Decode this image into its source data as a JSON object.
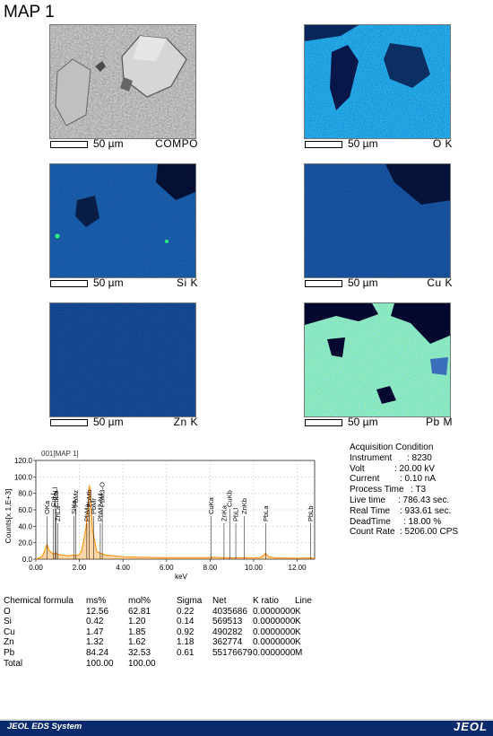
{
  "title": "MAP 1",
  "maps": [
    {
      "scale": "50 µm",
      "element": "COMPO"
    },
    {
      "scale": "50 µm",
      "element": "O K"
    },
    {
      "scale": "50 µm",
      "element": "Si K"
    },
    {
      "scale": "50 µm",
      "element": "Cu K"
    },
    {
      "scale": "50 µm",
      "element": "Zn K"
    },
    {
      "scale": "50 µm",
      "element": "Pb M"
    }
  ],
  "acquisition": {
    "heading": "Acquisition Condition",
    "rows": [
      {
        "key": "Instrument",
        "value": ": 8230"
      },
      {
        "key": "Volt",
        "value": ": 20.00 kV"
      },
      {
        "key": "Current",
        "value": ": 0.10 nA"
      },
      {
        "key": "Process Time",
        "value": ": T3"
      },
      {
        "key": "Live time",
        "value": ": 786.43 sec."
      },
      {
        "key": "Real Time",
        "value": ": 933.61 sec."
      },
      {
        "key": "DeadTime",
        "value": ": 18.00 %"
      },
      {
        "key": "Count Rate",
        "value": ": 5206.00 CPS"
      }
    ]
  },
  "chart_data": {
    "type": "line",
    "title": "001[MAP 1]",
    "xlabel": "keV",
    "ylabel": "Counts[x 1.E+3]",
    "xlim": [
      0,
      12.8
    ],
    "ylim": [
      0,
      120
    ],
    "xticks": [
      "0.00",
      "2.00",
      "4.00",
      "6.00",
      "8.00",
      "10.00",
      "12.00"
    ],
    "yticks": [
      "0.0",
      "20.0",
      "40.0",
      "60.0",
      "80.0",
      "100.0",
      "120.0"
    ],
    "spectrum": {
      "x": [
        0.0,
        0.2,
        0.3,
        0.4,
        0.45,
        0.52,
        0.6,
        0.8,
        0.93,
        1.0,
        1.2,
        1.5,
        1.74,
        1.85,
        2.0,
        2.1,
        2.2,
        2.3,
        2.35,
        2.4,
        2.45,
        2.5,
        2.6,
        2.8,
        3.0,
        3.2,
        4.0,
        5.0,
        6.0,
        7.0,
        8.0,
        8.05,
        8.6,
        9.0,
        10.3,
        10.45,
        10.55,
        10.7,
        11.0,
        12.0,
        12.6,
        12.8
      ],
      "y": [
        0,
        2,
        4,
        10,
        14,
        18,
        11,
        6,
        8,
        6,
        5,
        4,
        5,
        4,
        6,
        10,
        24,
        38,
        52,
        65,
        90,
        84,
        36,
        9,
        7,
        5,
        3,
        2.2,
        2,
        1.8,
        1.8,
        2.4,
        1.8,
        1.6,
        2,
        5,
        7,
        3,
        1.6,
        1.2,
        1.6,
        1
      ],
      "color": "#ff8c00"
    },
    "peak_labels": [
      {
        "label": "OKa",
        "x": 0.52,
        "level": 1
      },
      {
        "label": "ZnLa",
        "x": 1.0,
        "level": 2
      },
      {
        "label": "CuLa",
        "x": 0.93,
        "level": 0
      },
      {
        "label": "ZnLl",
        "x": 0.88,
        "level": -1
      },
      {
        "label": "CuLl",
        "x": 0.81,
        "level": 0
      },
      {
        "label": "SiKa",
        "x": 1.74,
        "level": 1
      },
      {
        "label": "PbMz",
        "x": 1.84,
        "level": 0
      },
      {
        "label": "PbMa",
        "x": 2.34,
        "level": 2
      },
      {
        "label": "PbMb",
        "x": 2.44,
        "level": 0
      },
      {
        "label": "PbMr",
        "x": 2.65,
        "level": 1
      },
      {
        "label": "PbM2-N4",
        "x": 2.96,
        "level": 2
      },
      {
        "label": "PbM3-O",
        "x": 3.05,
        "level": 0
      },
      {
        "label": "CuKa",
        "x": 8.05,
        "level": 1
      },
      {
        "label": "ZnKa",
        "x": 8.64,
        "level": 2
      },
      {
        "label": "CuKb",
        "x": 8.9,
        "level": 0
      },
      {
        "label": "PbLl",
        "x": 9.18,
        "level": 2
      },
      {
        "label": "ZnKb",
        "x": 9.57,
        "level": 1
      },
      {
        "label": "PbLa",
        "x": 10.55,
        "level": 2
      },
      {
        "label": "PbLb",
        "x": 12.61,
        "level": 2
      }
    ]
  },
  "composition": {
    "headers": [
      "Chemical formula",
      "ms%",
      "mol%",
      "Sigma",
      "Net",
      "K ratio",
      "Line"
    ],
    "rows": [
      [
        "O",
        "12.56",
        "62.81",
        "0.22",
        "4035686",
        "0.0000000",
        "K"
      ],
      [
        "Si",
        "0.42",
        "1.20",
        "0.14",
        "569513",
        "0.0000000",
        "K"
      ],
      [
        "Cu",
        "1.47",
        "1.85",
        "0.92",
        "490282",
        "0.0000000",
        "K"
      ],
      [
        "Zn",
        "1.32",
        "1.62",
        "1.18",
        "362774",
        "0.0000000",
        "K"
      ],
      [
        "Pb",
        "84.24",
        "32.53",
        "0.61",
        "55176679",
        "0.0000000",
        "M"
      ],
      [
        "Total",
        "100.00",
        "100.00",
        "",
        "",
        "",
        ""
      ]
    ]
  },
  "footer": {
    "left": "JEOL EDS System",
    "right": "JEOL"
  },
  "colors": {
    "footer_bg": "#0a2a6e",
    "spectrum": "#ff8c00",
    "map_dark": "#050a40"
  }
}
